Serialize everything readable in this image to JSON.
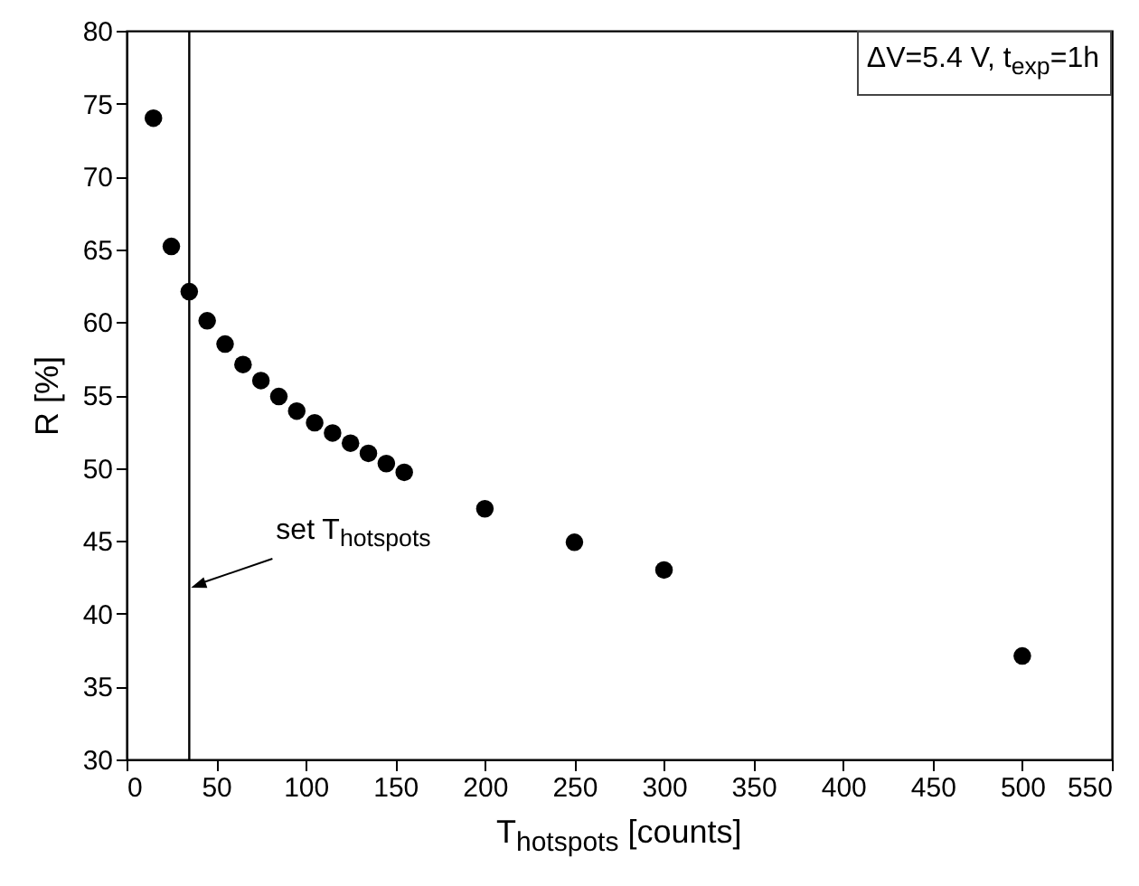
{
  "chart_data": {
    "type": "scatter",
    "xlabel": "T$_{hotspots}$ [counts]",
    "ylabel": "R [%]",
    "x": [
      15,
      25,
      35,
      45,
      55,
      65,
      75,
      85,
      95,
      105,
      115,
      125,
      135,
      145,
      155,
      200,
      250,
      300,
      500
    ],
    "series": [
      {
        "color": "#000000",
        "values": [
          74,
          65.2,
          62.1,
          60.1,
          58.5,
          57.1,
          56.0,
          54.9,
          53.9,
          53.1,
          52.4,
          51.7,
          51.0,
          50.3,
          49.7,
          47.2,
          44.9,
          43.0,
          37.1
        ]
      }
    ],
    "marker": "circle",
    "xlim": [
      0,
      550
    ],
    "xticks": [
      0,
      50,
      100,
      150,
      200,
      250,
      300,
      350,
      400,
      450,
      500,
      550
    ],
    "ylim": [
      30,
      80
    ],
    "yticks": [
      30,
      35,
      40,
      45,
      50,
      55,
      60,
      65,
      70,
      75,
      80
    ],
    "ref_lines": [
      {
        "axis": "x",
        "value": 35,
        "label": "set T$_{hotspots}$",
        "color": "#000000"
      }
    ],
    "annotations": [
      "ΔV=5.4 V, t$_{exp}$=1h"
    ]
  }
}
